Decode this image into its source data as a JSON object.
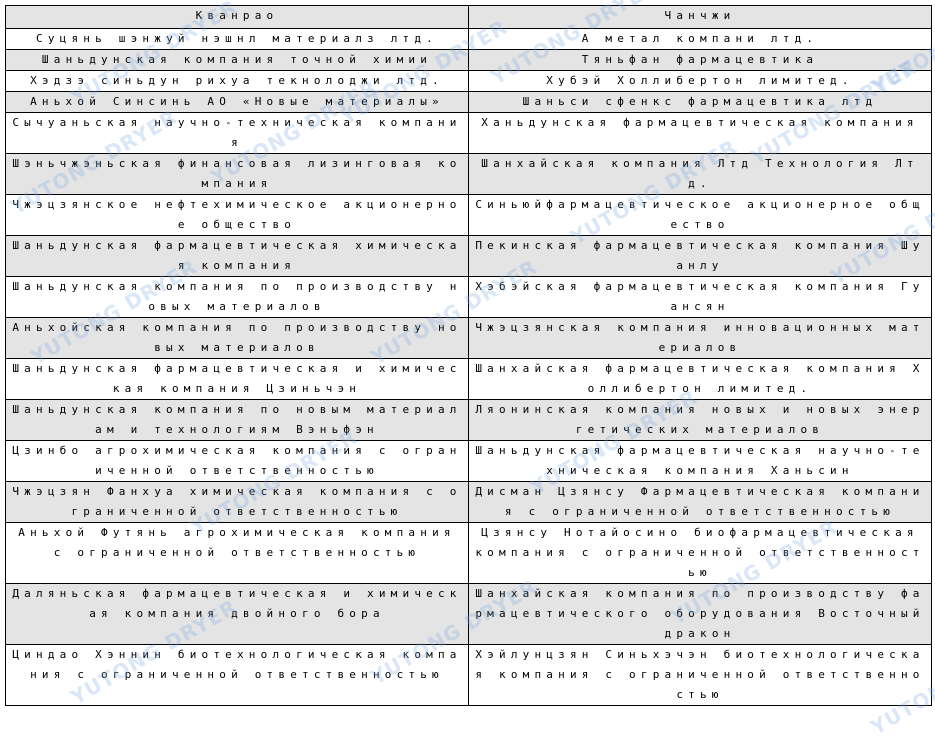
{
  "table": {
    "headers": [
      "Кванрао",
      "Чанчжи"
    ],
    "rows": [
      [
        "Суцянь шэнжуй нэшнл материалз лтд.",
        "А метал компани лтд."
      ],
      [
        "Шаньдунская компания точной химии",
        "Тяньфан фармацевтика"
      ],
      [
        "Хэдзэ синьдун рихуа текнолоджи лтд.",
        "Хубэй Холлибертон лимитед."
      ],
      [
        "Аньхой Синсинь АО «Новые материалы»",
        "Шаньси сфенкс фармацевтика лтд"
      ],
      [
        "Сычуаньская научно-техническая компания",
        "Ханьдунская фармацевтическая компания"
      ],
      [
        "Шэньчжэньская финансовая лизинговая компания",
        "Шанхайская компания Лтд Технология Лтд."
      ],
      [
        "Чжэцзянское нефтехимическое акционерное общество",
        "Синьюйфармацевтическое акционерное общество"
      ],
      [
        "Шаньдунская фармацевтическая химическая компания",
        "Пекинская фармацевтическая компания Шуанлу"
      ],
      [
        "Шаньдунская компания по производству новых материалов",
        "Хэбэйская фармацевтическая компания Гуансян"
      ],
      [
        "Аньхойская компания по производству новых материалов",
        "Чжэцзянская компания инновационных материалов"
      ],
      [
        "Шаньдунская фармацевтическая и химическая компания Цзиньчэн",
        "Шанхайская фармацевтическая компания Холлибертон лимитед."
      ],
      [
        "Шаньдунская компания по новым материалам и технологиям Вэньфэн",
        "Ляонинская компания новых и новых энергетических материалов"
      ],
      [
        "Цзинбо агрохимическая компания с ограниченной ответственностью",
        "Шаньдунская фармацевтическая научно-техническая компания Ханьсин"
      ],
      [
        "Чжэцзян Фанхуа химическая компания с ограниченной ответственностью",
        "Дисман Цзянсу Фармацевтическая компания с ограниченной ответственностью"
      ],
      [
        "Аньхой Футянь агрохимическая компания с ограниченной ответственностью",
        "Цзянсу Нотайосино биофармацевтическая компания с ограниченной ответственностью"
      ],
      [
        "Даляньская фармацевтическая и химическая компания двойного бора",
        "Шанхайская компания по производству фармацевтического оборудования Восточный дракон"
      ],
      [
        "Циндао Хэннин биотехнологическая компания с ограниченной ответственностью",
        "Хэйлунцзян Синьхэчэн биотехнологическая компания с ограниченной ответственностью"
      ]
    ]
  },
  "watermark": "YUTONG DRYER"
}
